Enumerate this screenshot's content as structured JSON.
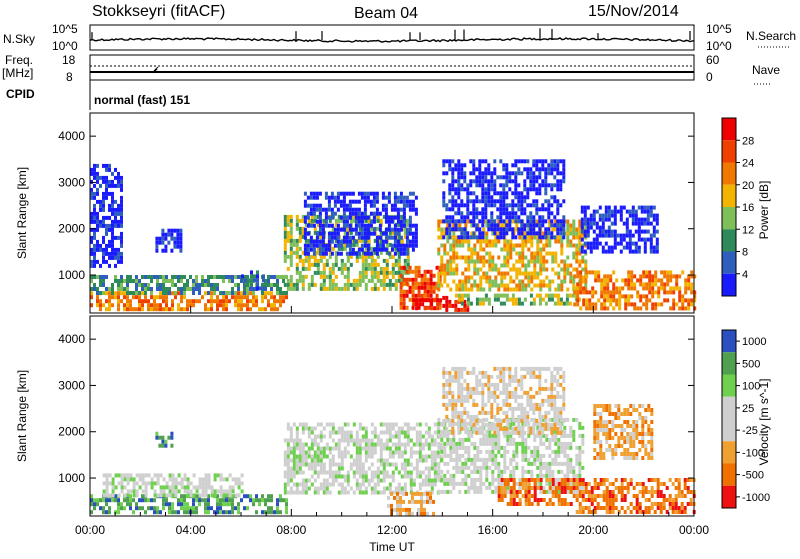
{
  "header": {
    "title": "Stokkseyri (fitACF)",
    "beam": "Beam 04",
    "date": "15/Nov/2014"
  },
  "strip": {
    "nsky_label": "N.Sky",
    "nsky_top": "10^5",
    "nsky_bottom": "10^0",
    "nsearch_label": "N.Search",
    "freq_label": "Freq.",
    "freq_unit": "[MHz]",
    "freq_top": "18",
    "freq_bottom": "8",
    "nave_top": "60",
    "nave_bottom": "0",
    "nave_label": "Nave",
    "cpid_label": "CPID",
    "cpid_value": "normal (fast) 151"
  },
  "axes": {
    "xlabel": "Time UT",
    "x_ticks": [
      "00:00",
      "04:00",
      "08:00",
      "12:00",
      "16:00",
      "20:00",
      "00:00"
    ],
    "ylabel": "Slant Range [km]",
    "y_ticks": [
      1000,
      2000,
      3000,
      4000
    ],
    "y_range_km": [
      180,
      4500
    ],
    "x_range_hours": [
      0,
      24
    ]
  },
  "colors": {
    "power": [
      "#1a1aff",
      "#2e5fbf",
      "#2e8a5a",
      "#7fbf5a",
      "#f2b400",
      "#f07800",
      "#f04000",
      "#ee0000"
    ],
    "velocity": [
      "#2a4fbf",
      "#4fa04f",
      "#6fd04f",
      "#cfcfcf",
      "#cfcfcf",
      "#f0a030",
      "#f07000",
      "#ee1111"
    ]
  },
  "chart_data": [
    {
      "type": "heatmap",
      "name": "power-panel",
      "title": "",
      "xlabel": "Time UT",
      "ylabel": "Slant Range [km]",
      "ylim": [
        180,
        4500
      ],
      "colorbar_label": "Power [dB]",
      "colorbar_ticks": [
        "4",
        "8",
        "12",
        "16",
        "20",
        "24",
        "28"
      ],
      "regions": [
        {
          "t0": 0.0,
          "t1": 7.8,
          "r0": 250,
          "r1": 650,
          "level": 5
        },
        {
          "t0": 0.0,
          "t1": 7.8,
          "r0": 650,
          "r1": 1000,
          "level": 2
        },
        {
          "t0": 6.0,
          "t1": 7.0,
          "r0": 700,
          "r1": 1100,
          "level": 1
        },
        {
          "t0": 0.0,
          "t1": 1.2,
          "r0": 1200,
          "r1": 3400,
          "level": 0
        },
        {
          "t0": 2.6,
          "t1": 3.6,
          "r0": 1500,
          "r1": 2000,
          "level": 0
        },
        {
          "t0": 7.7,
          "t1": 12.6,
          "r0": 700,
          "r1": 2300,
          "level": 3
        },
        {
          "t0": 8.5,
          "t1": 13.0,
          "r0": 1500,
          "r1": 2800,
          "level": 0
        },
        {
          "t0": 12.3,
          "t1": 13.9,
          "r0": 250,
          "r1": 1200,
          "level": 6
        },
        {
          "t0": 12.8,
          "t1": 13.9,
          "r0": 250,
          "r1": 500,
          "level": 7
        },
        {
          "t0": 14.0,
          "t1": 15.0,
          "r0": 250,
          "r1": 550,
          "level": 7
        },
        {
          "t0": 13.8,
          "t1": 19.7,
          "r0": 700,
          "r1": 2200,
          "level": 4
        },
        {
          "t0": 14.0,
          "t1": 18.8,
          "r0": 1800,
          "r1": 3500,
          "level": 0
        },
        {
          "t0": 14.5,
          "t1": 19.5,
          "r0": 400,
          "r1": 600,
          "level": 3
        },
        {
          "t0": 19.2,
          "t1": 24.0,
          "r0": 250,
          "r1": 1100,
          "level": 5
        },
        {
          "t0": 19.5,
          "t1": 22.5,
          "r0": 1500,
          "r1": 2500,
          "level": 0
        }
      ]
    },
    {
      "type": "heatmap",
      "name": "velocity-panel",
      "title": "",
      "xlabel": "Time UT",
      "ylabel": "Slant Range [km]",
      "ylim": [
        180,
        4500
      ],
      "colorbar_label": "Velocity [m s^-1]",
      "colorbar_ticks": [
        "1000",
        "500",
        "100",
        "25",
        "-25",
        "-100",
        "-500",
        "-1000"
      ],
      "regions": [
        {
          "t0": 0.0,
          "t1": 7.8,
          "r0": 250,
          "r1": 650,
          "level": 1
        },
        {
          "t0": 0.5,
          "t1": 6.0,
          "r0": 650,
          "r1": 1100,
          "level": 3
        },
        {
          "t0": 2.6,
          "t1": 3.3,
          "r0": 1700,
          "r1": 2000,
          "level": 1
        },
        {
          "t0": 7.7,
          "t1": 14.0,
          "r0": 700,
          "r1": 2200,
          "level": 3
        },
        {
          "t0": 11.8,
          "t1": 13.6,
          "r0": 250,
          "r1": 700,
          "level": 5
        },
        {
          "t0": 13.8,
          "t1": 19.6,
          "r0": 700,
          "r1": 2300,
          "level": 3
        },
        {
          "t0": 14.0,
          "t1": 18.8,
          "r0": 2000,
          "r1": 3400,
          "level": 4
        },
        {
          "t0": 16.2,
          "t1": 19.2,
          "r0": 400,
          "r1": 1000,
          "level": 6
        },
        {
          "t0": 19.3,
          "t1": 24.0,
          "r0": 250,
          "r1": 1000,
          "level": 6
        },
        {
          "t0": 20.0,
          "t1": 22.3,
          "r0": 1400,
          "r1": 2600,
          "level": 5
        }
      ]
    }
  ]
}
